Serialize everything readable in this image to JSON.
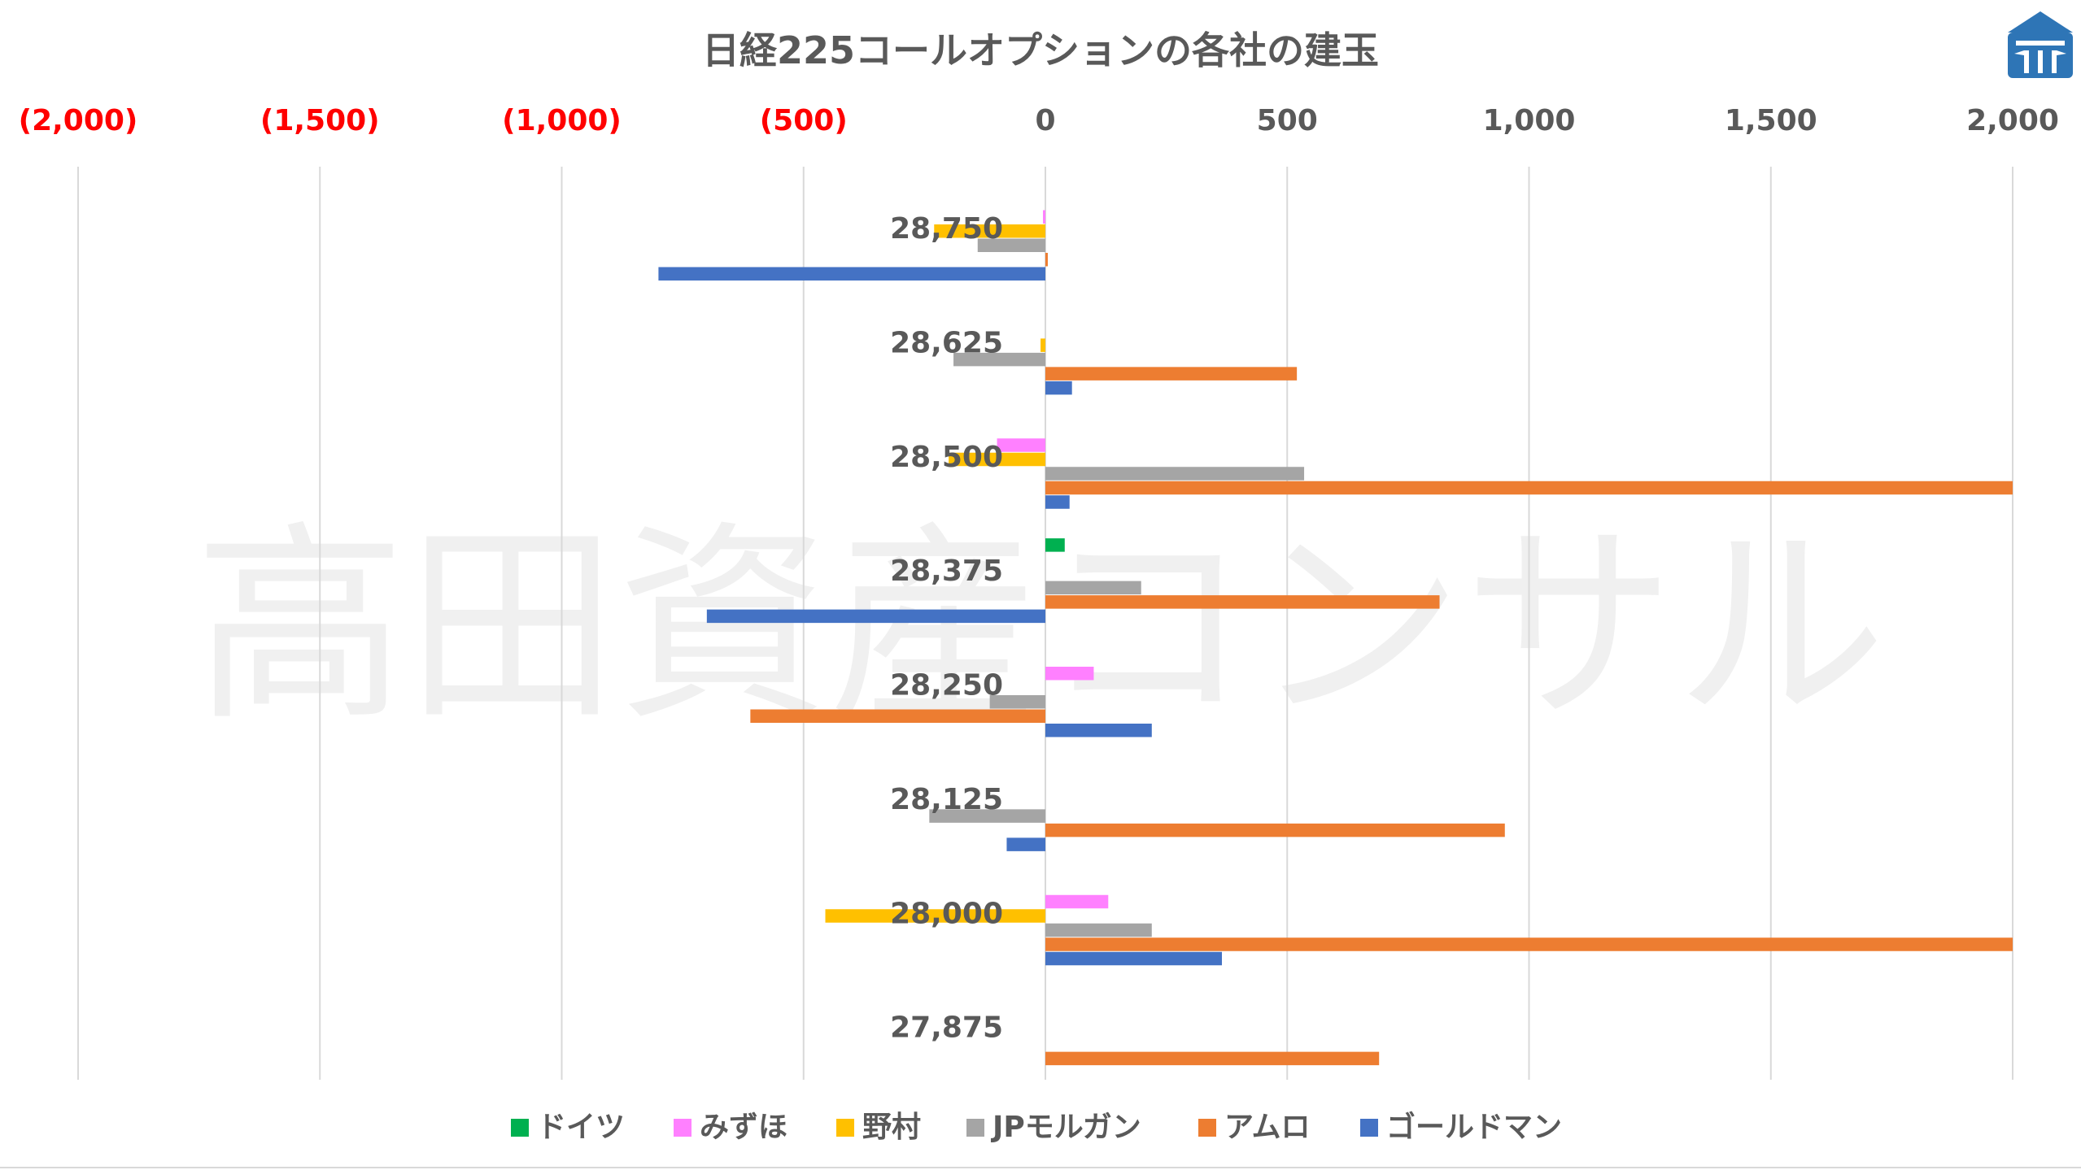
{
  "chart_data": {
    "type": "bar",
    "orientation": "horizontal",
    "title": "日経225コールオプションの各社の建玉",
    "watermark": "高田資産コンサル",
    "xlim": [
      -2000,
      2000
    ],
    "x_ticks": [
      {
        "value": -2000,
        "label": "(2,000)"
      },
      {
        "value": -1500,
        "label": "(1,500)"
      },
      {
        "value": -1000,
        "label": "(1,000)"
      },
      {
        "value": -500,
        "label": "(500)"
      },
      {
        "value": 0,
        "label": "0"
      },
      {
        "value": 500,
        "label": "500"
      },
      {
        "value": 1000,
        "label": "1,000"
      },
      {
        "value": 1500,
        "label": "1,500"
      },
      {
        "value": 2000,
        "label": "2,000"
      }
    ],
    "negative_tick_color": "#ff0000",
    "positive_tick_color": "#595959",
    "grid": true,
    "legend_position": "bottom",
    "categories": [
      "28,750",
      "28,625",
      "28,500",
      "28,375",
      "28,250",
      "28,125",
      "28,000",
      "27,875"
    ],
    "series": [
      {
        "name": "ドイツ",
        "color": "#00b050",
        "values": [
          0,
          0,
          0,
          40,
          0,
          0,
          0,
          0
        ]
      },
      {
        "name": "みずほ",
        "color": "#ff80ff",
        "values": [
          -5,
          0,
          -100,
          0,
          100,
          0,
          130,
          0
        ]
      },
      {
        "name": "野村",
        "color": "#ffc000",
        "values": [
          -230,
          -10,
          -200,
          0,
          0,
          0,
          -455,
          0
        ]
      },
      {
        "name": "JPモルガン",
        "color": "#a5a5a5",
        "values": [
          -140,
          -190,
          535,
          198,
          -115,
          -240,
          220,
          0
        ]
      },
      {
        "name": "アムロ",
        "color": "#ed7d31",
        "values": [
          5,
          520,
          2000,
          815,
          -610,
          950,
          2000,
          690
        ]
      },
      {
        "name": "ゴールドマン",
        "color": "#4472c4",
        "values": [
          -800,
          55,
          50,
          -700,
          220,
          -80,
          365,
          0
        ]
      }
    ]
  }
}
